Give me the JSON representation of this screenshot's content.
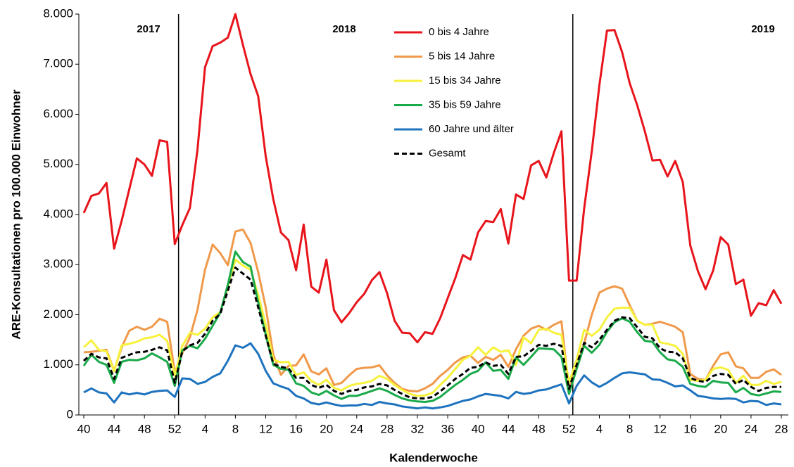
{
  "chart_data": {
    "type": "line",
    "y_label": "ARE-Konsultationen pro 100.000 Einwohner",
    "x_label": "Kalenderwoche",
    "years": [
      "2017",
      "2018",
      "2019"
    ],
    "categories": [
      "40",
      null,
      null,
      null,
      "44",
      null,
      null,
      null,
      "48",
      null,
      null,
      null,
      "52",
      null,
      null,
      null,
      "4",
      null,
      null,
      null,
      "8",
      null,
      null,
      null,
      "12",
      null,
      null,
      null,
      "16",
      null,
      null,
      null,
      "20",
      null,
      null,
      null,
      "24",
      null,
      null,
      null,
      "28",
      null,
      null,
      null,
      "32",
      null,
      null,
      null,
      "36",
      null,
      null,
      null,
      "40",
      null,
      null,
      null,
      "44",
      null,
      null,
      null,
      "48",
      null,
      null,
      null,
      "52",
      null,
      null,
      null,
      "4",
      null,
      null,
      null,
      "8",
      null,
      null,
      null,
      "12",
      null,
      null,
      null,
      "16",
      null,
      null,
      null,
      "20",
      null,
      null,
      null,
      "24",
      null,
      null,
      null,
      "28"
    ],
    "ylim": [
      0,
      8000
    ],
    "yticks": [
      0,
      {
        "value": 1000,
        "label": "1.000"
      },
      {
        "value": 2000,
        "label": "2.000"
      },
      {
        "value": 3000,
        "label": "3.000"
      },
      {
        "value": 4000,
        "label": "4.000"
      },
      {
        "value": 5000,
        "label": "5.000"
      },
      {
        "value": 6000,
        "label": "6.000"
      },
      {
        "value": 7000,
        "label": "7.000"
      },
      {
        "value": 8000,
        "label": "8.000"
      }
    ],
    "legend": "upper center",
    "series": [
      {
        "name": "0 bis 4 Jahre",
        "color": "#e8141b",
        "style": "solid",
        "values": [
          4030,
          4370,
          4420,
          4630,
          3320,
          3880,
          4500,
          5120,
          5000,
          4770,
          5480,
          5450,
          3410,
          3790,
          4130,
          5300,
          6940,
          7360,
          7430,
          7530,
          8000,
          7380,
          6800,
          6360,
          5160,
          4300,
          3640,
          3490,
          2890,
          3800,
          2560,
          2440,
          3100,
          2090,
          1850,
          2030,
          2250,
          2420,
          2690,
          2850,
          2430,
          1880,
          1640,
          1630,
          1450,
          1650,
          1620,
          1930,
          2330,
          2730,
          3190,
          3100,
          3640,
          3870,
          3850,
          4110,
          3420,
          4400,
          4310,
          4980,
          5070,
          4740,
          5230,
          5660,
          2680,
          2680,
          4120,
          5260,
          6580,
          7670,
          7680,
          7240,
          6620,
          6180,
          5660,
          5080,
          5090,
          4760,
          5070,
          4650,
          3380,
          2870,
          2510,
          2880,
          3550,
          3400,
          2610,
          2700,
          1980,
          2230,
          2190,
          2490,
          2220
        ]
      },
      {
        "name": "5 bis 14 Jahre",
        "color": "#f0994a",
        "style": "solid",
        "values": [
          1250,
          1260,
          1280,
          1300,
          880,
          1350,
          1680,
          1760,
          1700,
          1760,
          1920,
          1860,
          850,
          1230,
          1550,
          2100,
          2900,
          3400,
          3230,
          2990,
          3660,
          3700,
          3430,
          2850,
          2150,
          1200,
          800,
          980,
          990,
          1210,
          870,
          810,
          930,
          600,
          640,
          790,
          920,
          940,
          950,
          990,
          790,
          640,
          520,
          480,
          470,
          530,
          620,
          780,
          900,
          1050,
          1150,
          1180,
          1040,
          1160,
          1100,
          1200,
          960,
          1310,
          1580,
          1720,
          1780,
          1700,
          1800,
          1870,
          500,
          950,
          1430,
          2000,
          2440,
          2520,
          2570,
          2520,
          2190,
          1880,
          1800,
          1820,
          1860,
          1810,
          1760,
          1650,
          820,
          720,
          700,
          980,
          1210,
          1250,
          970,
          930,
          740,
          740,
          860,
          910,
          800
        ]
      },
      {
        "name": "15 bis 34 Jahre",
        "color": "#f7f23c",
        "style": "solid",
        "values": [
          1350,
          1490,
          1300,
          1270,
          870,
          1390,
          1420,
          1460,
          1530,
          1550,
          1600,
          1480,
          780,
          1380,
          1640,
          1600,
          1720,
          1950,
          2050,
          2550,
          3100,
          2980,
          2900,
          2400,
          1800,
          1100,
          1050,
          1060,
          800,
          850,
          680,
          600,
          700,
          540,
          490,
          580,
          620,
          640,
          680,
          780,
          720,
          600,
          500,
          420,
          380,
          390,
          440,
          600,
          740,
          920,
          1100,
          1180,
          1350,
          1200,
          1350,
          1260,
          1290,
          1000,
          1550,
          1430,
          1700,
          1720,
          1640,
          1600,
          640,
          1100,
          1700,
          1580,
          1700,
          1950,
          2120,
          2140,
          2140,
          1880,
          1800,
          1800,
          1450,
          1420,
          1380,
          1220,
          700,
          680,
          700,
          920,
          950,
          900,
          640,
          780,
          600,
          600,
          680,
          620,
          660
        ]
      },
      {
        "name": "35 bis 59 Jahre",
        "color": "#1aaa4a",
        "style": "solid",
        "values": [
          980,
          1200,
          1060,
          1000,
          640,
          1060,
          1100,
          1090,
          1130,
          1230,
          1150,
          1060,
          580,
          1290,
          1380,
          1330,
          1520,
          1780,
          2040,
          2600,
          3260,
          3050,
          2960,
          2250,
          1600,
          1000,
          920,
          900,
          630,
          580,
          450,
          400,
          480,
          390,
          320,
          380,
          380,
          430,
          480,
          530,
          480,
          400,
          330,
          290,
          270,
          260,
          280,
          360,
          480,
          600,
          700,
          820,
          880,
          1050,
          880,
          900,
          720,
          1150,
          1000,
          1160,
          1330,
          1320,
          1310,
          1160,
          420,
          920,
          1380,
          1240,
          1400,
          1660,
          1850,
          1930,
          1860,
          1650,
          1480,
          1460,
          1250,
          1110,
          1080,
          960,
          620,
          580,
          560,
          680,
          650,
          640,
          450,
          540,
          420,
          390,
          430,
          470,
          460
        ]
      },
      {
        "name": "60 Jahre und älter",
        "color": "#1e73be",
        "style": "solid",
        "values": [
          450,
          530,
          450,
          430,
          250,
          450,
          410,
          440,
          410,
          460,
          480,
          490,
          360,
          730,
          720,
          620,
          660,
          760,
          830,
          1080,
          1390,
          1340,
          1430,
          1220,
          880,
          630,
          570,
          520,
          380,
          330,
          240,
          210,
          250,
          210,
          180,
          190,
          190,
          220,
          200,
          260,
          230,
          210,
          170,
          150,
          130,
          150,
          130,
          150,
          180,
          230,
          280,
          310,
          370,
          420,
          400,
          380,
          330,
          460,
          420,
          440,
          490,
          510,
          560,
          610,
          230,
          580,
          790,
          650,
          560,
          640,
          740,
          830,
          850,
          830,
          810,
          710,
          700,
          640,
          570,
          590,
          490,
          380,
          360,
          330,
          320,
          330,
          320,
          250,
          280,
          270,
          200,
          230,
          210
        ]
      },
      {
        "name": "Gesamt",
        "color": "#000000",
        "style": "dashed",
        "values": [
          1080,
          1220,
          1150,
          1130,
          720,
          1140,
          1200,
          1250,
          1260,
          1300,
          1350,
          1290,
          640,
          1270,
          1390,
          1440,
          1620,
          1880,
          2020,
          2480,
          2940,
          2820,
          2700,
          2150,
          1580,
          1020,
          960,
          930,
          740,
          740,
          600,
          540,
          600,
          480,
          420,
          480,
          500,
          550,
          570,
          620,
          590,
          500,
          420,
          350,
          330,
          330,
          360,
          470,
          590,
          720,
          820,
          940,
          960,
          1050,
          980,
          1000,
          820,
          1160,
          1170,
          1280,
          1400,
          1380,
          1420,
          1380,
          520,
          1000,
          1440,
          1350,
          1500,
          1700,
          1880,
          1950,
          1930,
          1750,
          1560,
          1530,
          1330,
          1260,
          1250,
          1130,
          740,
          680,
          660,
          780,
          820,
          800,
          620,
          700,
          560,
          480,
          540,
          560,
          560
        ]
      }
    ]
  }
}
